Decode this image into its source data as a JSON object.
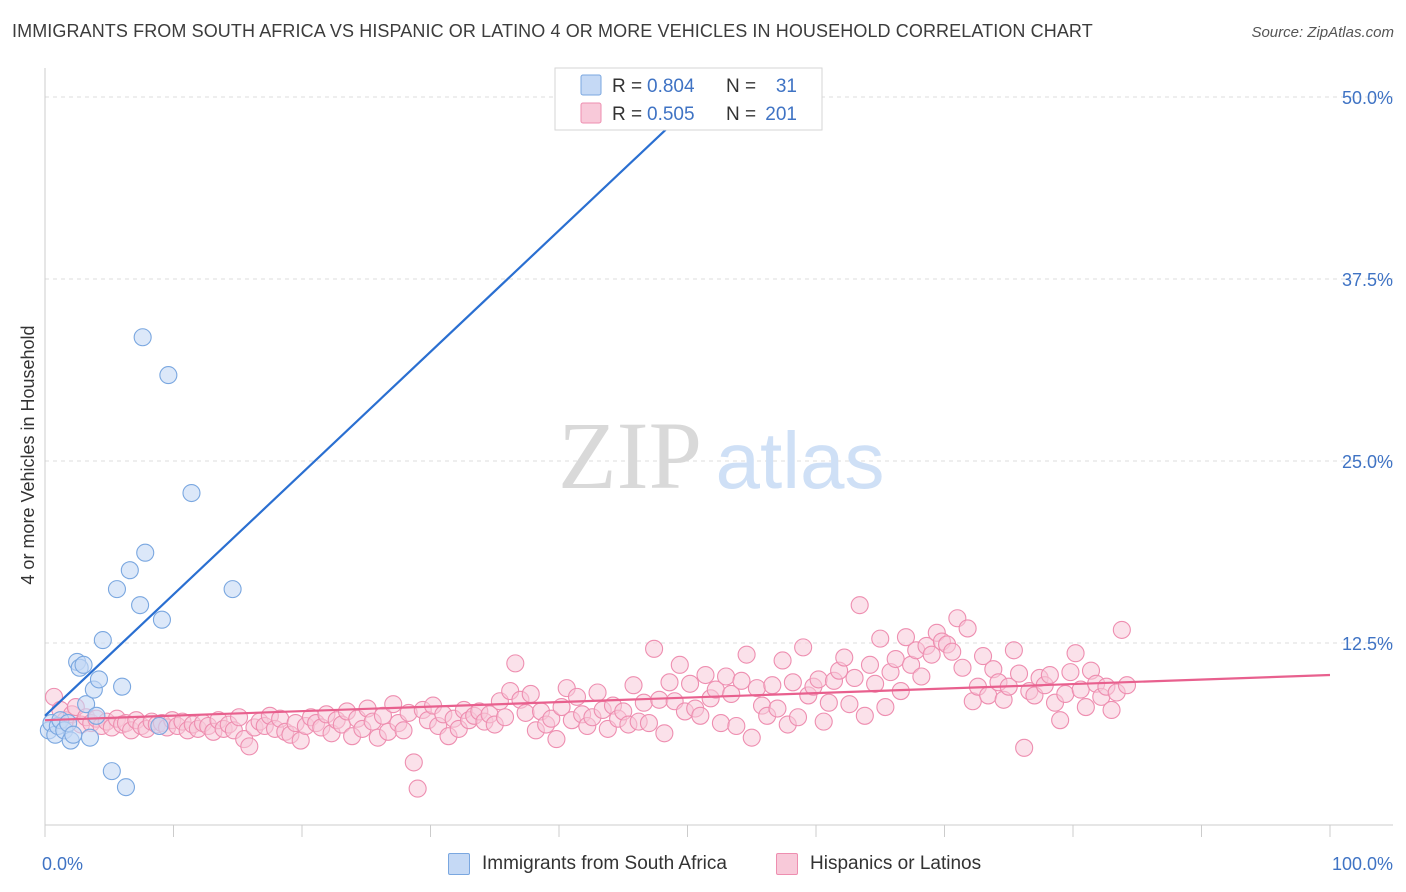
{
  "title": "IMMIGRANTS FROM SOUTH AFRICA VS HISPANIC OR LATINO 4 OR MORE VEHICLES IN HOUSEHOLD CORRELATION CHART",
  "source": "Source: ZipAtlas.com",
  "watermark": {
    "zip": "ZIP",
    "atlas": "atlas"
  },
  "colors": {
    "blue": "#7aa7e0",
    "blue_fill": "#c5d9f5",
    "blue_line": "#2a6fd1",
    "pink": "#ee8eb0",
    "pink_fill": "#f8c9d9",
    "pink_line": "#e8608e",
    "axis_text": "#3f73c4",
    "grid": "#dedede"
  },
  "legend_box": {
    "rows": [
      {
        "r_label": "R =",
        "r_value": "0.804",
        "n_label": "N =",
        "n_value": "31"
      },
      {
        "r_label": "R =",
        "r_value": "0.505",
        "n_label": "N =",
        "n_value": "201"
      }
    ]
  },
  "legend_bottom": [
    {
      "label": "Immigrants from South Africa"
    },
    {
      "label": "Hispanics or Latinos"
    }
  ],
  "chart_data": {
    "type": "scatter",
    "title": "IMMIGRANTS FROM SOUTH AFRICA VS HISPANIC OR LATINO 4 OR MORE VEHICLES IN HOUSEHOLD CORRELATION CHART",
    "xlabel": "",
    "ylabel": "4 or more Vehicles in Household",
    "xlim": [
      0,
      100
    ],
    "ylim": [
      0,
      50
    ],
    "x_tick_labels": [
      "0.0%",
      "100.0%"
    ],
    "y_ticks": [
      12.5,
      25.0,
      37.5,
      50.0
    ],
    "y_tick_labels": [
      "12.5%",
      "25.0%",
      "37.5%",
      "50.0%"
    ],
    "series": [
      {
        "name": "Immigrants from South Africa",
        "R": 0.804,
        "N": 31,
        "trend": {
          "x": [
            0,
            51
          ],
          "y": [
            7.5,
            50
          ]
        },
        "points": [
          [
            0.3,
            6.5
          ],
          [
            0.5,
            7.0
          ],
          [
            0.8,
            6.2
          ],
          [
            1.0,
            6.8
          ],
          [
            1.2,
            7.2
          ],
          [
            1.5,
            6.5
          ],
          [
            1.8,
            7.0
          ],
          [
            2.0,
            5.8
          ],
          [
            2.2,
            6.2
          ],
          [
            2.5,
            11.2
          ],
          [
            2.7,
            10.8
          ],
          [
            3.0,
            11.0
          ],
          [
            3.2,
            8.3
          ],
          [
            3.5,
            6.0
          ],
          [
            3.8,
            9.3
          ],
          [
            4.0,
            7.5
          ],
          [
            4.2,
            10.0
          ],
          [
            4.5,
            12.7
          ],
          [
            5.2,
            3.7
          ],
          [
            5.6,
            16.2
          ],
          [
            6.0,
            9.5
          ],
          [
            6.3,
            2.6
          ],
          [
            6.6,
            17.5
          ],
          [
            7.4,
            15.1
          ],
          [
            7.6,
            33.5
          ],
          [
            7.8,
            18.7
          ],
          [
            8.9,
            6.8
          ],
          [
            9.1,
            14.1
          ],
          [
            9.6,
            30.9
          ],
          [
            11.4,
            22.8
          ],
          [
            14.6,
            16.2
          ]
        ]
      },
      {
        "name": "Hispanics or Latinos",
        "R": 0.505,
        "N": 201,
        "trend": {
          "x": [
            0,
            100
          ],
          "y": [
            7.2,
            10.3
          ]
        },
        "points": [
          [
            0.7,
            8.8
          ],
          [
            1.2,
            7.9
          ],
          [
            1.6,
            7.2
          ],
          [
            2.1,
            7.6
          ],
          [
            2.4,
            8.1
          ],
          [
            2.8,
            6.9
          ],
          [
            3.2,
            7.4
          ],
          [
            3.6,
            7.0
          ],
          [
            4.0,
            7.3
          ],
          [
            4.4,
            6.8
          ],
          [
            4.8,
            7.1
          ],
          [
            5.2,
            6.7
          ],
          [
            5.6,
            7.3
          ],
          [
            6.0,
            6.9
          ],
          [
            6.3,
            7.0
          ],
          [
            6.7,
            6.5
          ],
          [
            7.1,
            7.2
          ],
          [
            7.5,
            6.8
          ],
          [
            7.9,
            6.6
          ],
          [
            8.3,
            7.1
          ],
          [
            8.7,
            6.9
          ],
          [
            9.1,
            7.0
          ],
          [
            9.5,
            6.7
          ],
          [
            9.9,
            7.2
          ],
          [
            10.3,
            6.8
          ],
          [
            10.7,
            7.1
          ],
          [
            11.1,
            6.5
          ],
          [
            11.5,
            6.9
          ],
          [
            11.9,
            6.6
          ],
          [
            12.3,
            7.0
          ],
          [
            12.7,
            6.8
          ],
          [
            13.1,
            6.4
          ],
          [
            13.5,
            7.2
          ],
          [
            13.9,
            6.6
          ],
          [
            14.3,
            6.9
          ],
          [
            14.7,
            6.5
          ],
          [
            15.1,
            7.4
          ],
          [
            15.5,
            5.9
          ],
          [
            15.9,
            5.4
          ],
          [
            16.3,
            6.7
          ],
          [
            16.7,
            7.1
          ],
          [
            17.1,
            6.8
          ],
          [
            17.5,
            7.5
          ],
          [
            17.9,
            6.6
          ],
          [
            18.3,
            7.3
          ],
          [
            18.7,
            6.4
          ],
          [
            19.1,
            6.2
          ],
          [
            19.5,
            7.0
          ],
          [
            19.9,
            5.8
          ],
          [
            20.3,
            6.8
          ],
          [
            20.7,
            7.4
          ],
          [
            21.1,
            7.0
          ],
          [
            21.5,
            6.7
          ],
          [
            21.9,
            7.6
          ],
          [
            22.3,
            6.3
          ],
          [
            22.7,
            7.2
          ],
          [
            23.1,
            6.9
          ],
          [
            23.5,
            7.8
          ],
          [
            23.9,
            6.1
          ],
          [
            24.3,
            7.3
          ],
          [
            24.7,
            6.6
          ],
          [
            25.1,
            8.0
          ],
          [
            25.5,
            7.1
          ],
          [
            25.9,
            6.0
          ],
          [
            26.3,
            7.5
          ],
          [
            26.7,
            6.4
          ],
          [
            27.1,
            8.3
          ],
          [
            27.5,
            7.0
          ],
          [
            27.9,
            6.5
          ],
          [
            28.3,
            7.7
          ],
          [
            28.7,
            4.3
          ],
          [
            29.0,
            2.5
          ],
          [
            29.4,
            7.9
          ],
          [
            29.8,
            7.2
          ],
          [
            30.2,
            8.2
          ],
          [
            30.6,
            6.8
          ],
          [
            31.0,
            7.6
          ],
          [
            31.4,
            6.1
          ],
          [
            31.8,
            7.3
          ],
          [
            32.2,
            6.6
          ],
          [
            32.6,
            7.9
          ],
          [
            33.0,
            7.2
          ],
          [
            33.4,
            7.5
          ],
          [
            33.8,
            7.8
          ],
          [
            34.2,
            7.1
          ],
          [
            34.6,
            7.6
          ],
          [
            35.0,
            6.9
          ],
          [
            35.4,
            8.5
          ],
          [
            35.8,
            7.4
          ],
          [
            36.2,
            9.2
          ],
          [
            36.6,
            11.1
          ],
          [
            37.0,
            8.6
          ],
          [
            37.4,
            7.7
          ],
          [
            37.8,
            9.0
          ],
          [
            38.2,
            6.5
          ],
          [
            38.6,
            7.8
          ],
          [
            39.0,
            6.9
          ],
          [
            39.4,
            7.3
          ],
          [
            39.8,
            5.9
          ],
          [
            40.2,
            8.1
          ],
          [
            40.6,
            9.4
          ],
          [
            41.0,
            7.2
          ],
          [
            41.4,
            8.8
          ],
          [
            41.8,
            7.6
          ],
          [
            42.2,
            6.8
          ],
          [
            42.6,
            7.4
          ],
          [
            43.0,
            9.1
          ],
          [
            43.4,
            7.9
          ],
          [
            43.8,
            6.6
          ],
          [
            44.2,
            8.2
          ],
          [
            44.6,
            7.3
          ],
          [
            45.0,
            7.8
          ],
          [
            45.4,
            6.9
          ],
          [
            45.8,
            9.6
          ],
          [
            46.2,
            7.1
          ],
          [
            46.6,
            8.4
          ],
          [
            47.0,
            7.0
          ],
          [
            47.4,
            12.1
          ],
          [
            47.8,
            8.6
          ],
          [
            48.2,
            6.3
          ],
          [
            48.6,
            9.8
          ],
          [
            49.0,
            8.5
          ],
          [
            49.4,
            11.0
          ],
          [
            49.8,
            7.8
          ],
          [
            50.2,
            9.7
          ],
          [
            50.6,
            8.0
          ],
          [
            51.0,
            7.5
          ],
          [
            51.4,
            10.3
          ],
          [
            51.8,
            8.7
          ],
          [
            52.2,
            9.3
          ],
          [
            52.6,
            7.0
          ],
          [
            53.0,
            10.2
          ],
          [
            53.4,
            9.0
          ],
          [
            53.8,
            6.8
          ],
          [
            54.2,
            9.9
          ],
          [
            54.6,
            11.7
          ],
          [
            55.0,
            6.0
          ],
          [
            55.4,
            9.4
          ],
          [
            55.8,
            8.2
          ],
          [
            56.2,
            7.5
          ],
          [
            56.6,
            9.6
          ],
          [
            57.0,
            8.0
          ],
          [
            57.4,
            11.3
          ],
          [
            57.8,
            6.9
          ],
          [
            58.2,
            9.8
          ],
          [
            58.6,
            7.4
          ],
          [
            59.0,
            12.2
          ],
          [
            59.4,
            8.9
          ],
          [
            59.8,
            9.5
          ],
          [
            60.2,
            10.0
          ],
          [
            60.6,
            7.1
          ],
          [
            61.0,
            8.4
          ],
          [
            61.4,
            9.9
          ],
          [
            61.8,
            10.6
          ],
          [
            62.2,
            11.5
          ],
          [
            62.6,
            8.3
          ],
          [
            63.0,
            10.1
          ],
          [
            63.4,
            15.1
          ],
          [
            63.8,
            7.5
          ],
          [
            64.2,
            11.0
          ],
          [
            64.6,
            9.7
          ],
          [
            65.0,
            12.8
          ],
          [
            65.4,
            8.1
          ],
          [
            65.8,
            10.5
          ],
          [
            66.2,
            11.4
          ],
          [
            66.6,
            9.2
          ],
          [
            67.0,
            12.9
          ],
          [
            67.4,
            11.0
          ],
          [
            67.8,
            12.0
          ],
          [
            68.2,
            10.2
          ],
          [
            68.6,
            12.3
          ],
          [
            69.0,
            11.7
          ],
          [
            69.4,
            13.2
          ],
          [
            69.8,
            12.6
          ],
          [
            70.2,
            12.4
          ],
          [
            70.6,
            11.9
          ],
          [
            71.0,
            14.2
          ],
          [
            71.4,
            10.8
          ],
          [
            71.8,
            13.5
          ],
          [
            72.2,
            8.5
          ],
          [
            72.6,
            9.5
          ],
          [
            73.0,
            11.6
          ],
          [
            73.4,
            8.9
          ],
          [
            73.8,
            10.7
          ],
          [
            74.2,
            9.8
          ],
          [
            74.6,
            8.6
          ],
          [
            75.0,
            9.5
          ],
          [
            75.4,
            12.0
          ],
          [
            75.8,
            10.4
          ],
          [
            76.2,
            5.3
          ],
          [
            76.6,
            9.2
          ],
          [
            77.0,
            8.9
          ],
          [
            77.4,
            10.1
          ],
          [
            77.8,
            9.6
          ],
          [
            78.2,
            10.3
          ],
          [
            78.6,
            8.4
          ],
          [
            79.0,
            7.2
          ],
          [
            79.4,
            9.0
          ],
          [
            79.8,
            10.5
          ],
          [
            80.2,
            11.8
          ],
          [
            80.6,
            9.3
          ],
          [
            81.0,
            8.1
          ],
          [
            81.4,
            10.6
          ],
          [
            81.8,
            9.7
          ],
          [
            82.2,
            8.8
          ],
          [
            82.6,
            9.5
          ],
          [
            83.0,
            7.9
          ],
          [
            83.4,
            9.1
          ],
          [
            83.8,
            13.4
          ],
          [
            84.2,
            9.6
          ]
        ]
      }
    ]
  }
}
